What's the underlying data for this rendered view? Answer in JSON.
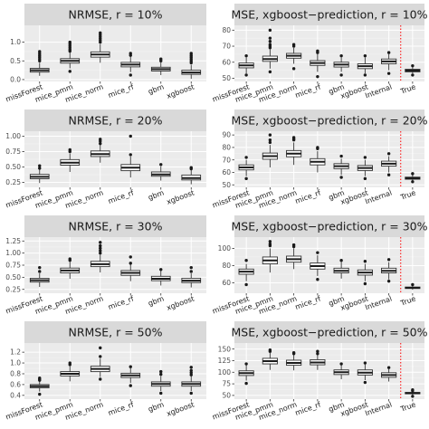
{
  "chart_data": [
    {
      "type": "box",
      "title": "NRMSE, r = 10%",
      "categories": [
        "missForest",
        "mice_pmm",
        "mice_norm",
        "mice_rf",
        "gbm",
        "xgboost"
      ],
      "ylim": [
        -0.05,
        1.45
      ],
      "yticks": [
        0.0,
        0.5,
        1.0
      ],
      "ytick_labels": [
        "0.0",
        "0.5",
        "1.0"
      ],
      "boxes": [
        {
          "q1": 0.2,
          "median": 0.25,
          "q3": 0.3,
          "whisker_low": 0.1,
          "whisker_high": 0.45,
          "outliers": [
            0.5,
            0.55,
            0.6,
            0.65,
            0.7,
            0.75
          ]
        },
        {
          "q1": 0.44,
          "median": 0.5,
          "q3": 0.56,
          "whisker_low": 0.3,
          "whisker_high": 0.73,
          "outliers": [
            0.22,
            0.76,
            0.8,
            0.85,
            0.9,
            0.95,
            1.0
          ]
        },
        {
          "q1": 0.6,
          "median": 0.67,
          "q3": 0.74,
          "whisker_low": 0.45,
          "whisker_high": 0.95,
          "outliers": [
            1.0,
            1.05,
            1.1,
            1.15,
            1.2,
            1.25
          ]
        },
        {
          "q1": 0.34,
          "median": 0.4,
          "q3": 0.46,
          "whisker_low": 0.2,
          "whisker_high": 0.62,
          "outliers": [
            0.12,
            0.65,
            0.7
          ]
        },
        {
          "q1": 0.23,
          "median": 0.28,
          "q3": 0.33,
          "whisker_low": 0.12,
          "whisker_high": 0.47,
          "outliers": [
            0.5,
            0.55
          ]
        },
        {
          "q1": 0.14,
          "median": 0.19,
          "q3": 0.25,
          "whisker_low": 0.02,
          "whisker_high": 0.4,
          "outliers": [
            0.45,
            0.5,
            0.55,
            0.6,
            0.65,
            0.7
          ]
        }
      ]
    },
    {
      "type": "box",
      "title": "MSE, xgboost−prediction, r = 10%",
      "categories": [
        "missForest",
        "mice_pmm",
        "mice_norm",
        "mice_rf",
        "gbm",
        "xgboost",
        "Internal",
        "True"
      ],
      "ylim": [
        48,
        83
      ],
      "yticks": [
        50,
        60,
        70,
        80
      ],
      "ytick_labels": [
        "50",
        "60",
        "70",
        "80"
      ],
      "true_divider": true,
      "boxes": [
        {
          "q1": 56.5,
          "median": 58.0,
          "q3": 59.5,
          "whisker_low": 53.0,
          "whisker_high": 63.0,
          "outliers": [
            52.0,
            64.0
          ]
        },
        {
          "q1": 60.5,
          "median": 62.0,
          "q3": 63.8,
          "whisker_low": 56.0,
          "whisker_high": 68.0,
          "outliers": [
            54.0,
            69.0,
            70.0,
            71.0,
            73.0,
            75.0,
            80.0
          ]
        },
        {
          "q1": 62.5,
          "median": 64.0,
          "q3": 65.5,
          "whisker_low": 59.0,
          "whisker_high": 69.0,
          "outliers": [
            56.0,
            70.0,
            71.0
          ]
        },
        {
          "q1": 58.0,
          "median": 59.5,
          "q3": 61.0,
          "whisker_low": 54.0,
          "whisker_high": 65.0,
          "outliers": [
            51.0,
            66.0,
            67.0
          ]
        },
        {
          "q1": 57.0,
          "median": 58.5,
          "q3": 60.0,
          "whisker_low": 54.0,
          "whisker_high": 63.0,
          "outliers": [
            52.0,
            64.0
          ]
        },
        {
          "q1": 56.0,
          "median": 57.5,
          "q3": 59.0,
          "whisker_low": 53.0,
          "whisker_high": 63.0,
          "outliers": [
            52.0,
            64.0
          ]
        },
        {
          "q1": 59.0,
          "median": 60.5,
          "q3": 62.0,
          "whisker_low": 55.0,
          "whisker_high": 65.0,
          "outliers": [
            53.0,
            66.0
          ]
        },
        {
          "q1": 54.0,
          "median": 54.8,
          "q3": 55.6,
          "whisker_low": 53.0,
          "whisker_high": 57.0,
          "outliers": [
            52.0,
            57.8
          ]
        }
      ]
    },
    {
      "type": "box",
      "title": "NRMSE, r = 20%",
      "categories": [
        "missForest",
        "mice_pmm",
        "mice_norm",
        "mice_rf",
        "gbm",
        "xgboost"
      ],
      "ylim": [
        0.17,
        1.08
      ],
      "yticks": [
        0.25,
        0.5,
        0.75,
        1.0
      ],
      "ytick_labels": [
        "0.25",
        "0.50",
        "0.75",
        "1.00"
      ],
      "boxes": [
        {
          "q1": 0.31,
          "median": 0.34,
          "q3": 0.38,
          "whisker_low": 0.24,
          "whisker_high": 0.46,
          "outliers": [
            0.48,
            0.52
          ]
        },
        {
          "q1": 0.53,
          "median": 0.57,
          "q3": 0.62,
          "whisker_low": 0.42,
          "whisker_high": 0.72,
          "outliers": [
            0.75,
            0.78
          ]
        },
        {
          "q1": 0.67,
          "median": 0.71,
          "q3": 0.76,
          "whisker_low": 0.57,
          "whisker_high": 0.86,
          "outliers": [
            0.88,
            0.92,
            0.95
          ]
        },
        {
          "q1": 0.44,
          "median": 0.49,
          "q3": 0.54,
          "whisker_low": 0.33,
          "whisker_high": 0.67,
          "outliers": [
            0.7,
            1.0
          ]
        },
        {
          "q1": 0.35,
          "median": 0.38,
          "q3": 0.42,
          "whisker_low": 0.28,
          "whisker_high": 0.51,
          "outliers": [
            0.54
          ]
        },
        {
          "q1": 0.29,
          "median": 0.32,
          "q3": 0.37,
          "whisker_low": 0.22,
          "whisker_high": 0.45,
          "outliers": [
            0.47,
            0.49
          ]
        }
      ]
    },
    {
      "type": "box",
      "title": "MSE, xgboost−prediction, r = 20%",
      "categories": [
        "missForest",
        "mice_pmm",
        "mice_norm",
        "mice_rf",
        "gbm",
        "xgboost",
        "Internal",
        "True"
      ],
      "ylim": [
        48,
        93
      ],
      "yticks": [
        50,
        60,
        70,
        80,
        90
      ],
      "ytick_labels": [
        "50",
        "60",
        "70",
        "80",
        "90"
      ],
      "true_divider": true,
      "boxes": [
        {
          "q1": 62.0,
          "median": 64.0,
          "q3": 66.0,
          "whisker_low": 57.0,
          "whisker_high": 70.0,
          "outliers": [
            55.0,
            72.0
          ]
        },
        {
          "q1": 70.5,
          "median": 73.0,
          "q3": 75.5,
          "whisker_low": 64.0,
          "whisker_high": 82.0,
          "outliers": [
            84.0,
            86.0,
            90.0
          ]
        },
        {
          "q1": 72.5,
          "median": 75.0,
          "q3": 77.5,
          "whisker_low": 66.0,
          "whisker_high": 84.0,
          "outliers": [
            86.0,
            87.0,
            88.0
          ]
        },
        {
          "q1": 66.0,
          "median": 68.5,
          "q3": 71.0,
          "whisker_low": 60.0,
          "whisker_high": 77.0,
          "outliers": [
            79.0,
            80.0
          ]
        },
        {
          "q1": 63.0,
          "median": 65.0,
          "q3": 67.0,
          "whisker_low": 58.0,
          "whisker_high": 71.0,
          "outliers": [
            56.0,
            73.0
          ]
        },
        {
          "q1": 61.5,
          "median": 63.5,
          "q3": 65.5,
          "whisker_low": 57.0,
          "whisker_high": 70.0,
          "outliers": [
            55.0,
            72.0
          ]
        },
        {
          "q1": 65.0,
          "median": 67.0,
          "q3": 69.0,
          "whisker_low": 60.0,
          "whisker_high": 73.0,
          "outliers": [
            58.0,
            75.0
          ]
        },
        {
          "q1": 54.5,
          "median": 55.3,
          "q3": 56.2,
          "whisker_low": 53.0,
          "whisker_high": 58.0,
          "outliers": [
            52.5,
            59.0
          ]
        }
      ]
    },
    {
      "type": "box",
      "title": "NRMSE, r = 30%",
      "categories": [
        "missForest",
        "mice_pmm",
        "mice_norm",
        "mice_rf",
        "gbm",
        "xgboost"
      ],
      "ylim": [
        0.17,
        1.33
      ],
      "yticks": [
        0.25,
        0.5,
        0.75,
        1.0,
        1.25
      ],
      "ytick_labels": [
        "0.25",
        "0.50",
        "0.75",
        "1.00",
        "1.25"
      ],
      "boxes": [
        {
          "q1": 0.4,
          "median": 0.44,
          "q3": 0.48,
          "whisker_low": 0.3,
          "whisker_high": 0.58,
          "outliers": [
            0.62,
            0.7
          ]
        },
        {
          "q1": 0.59,
          "median": 0.64,
          "q3": 0.69,
          "whisker_low": 0.47,
          "whisker_high": 0.82,
          "outliers": [
            0.85,
            0.88
          ]
        },
        {
          "q1": 0.72,
          "median": 0.77,
          "q3": 0.83,
          "whisker_low": 0.6,
          "whisker_high": 0.97,
          "outliers": [
            1.0,
            1.05,
            1.1,
            1.15,
            1.22
          ]
        },
        {
          "q1": 0.54,
          "median": 0.59,
          "q3": 0.64,
          "whisker_low": 0.42,
          "whisker_high": 0.76,
          "outliers": [
            0.79,
            0.92
          ]
        },
        {
          "q1": 0.43,
          "median": 0.47,
          "q3": 0.52,
          "whisker_low": 0.33,
          "whisker_high": 0.63,
          "outliers": [
            0.66
          ]
        },
        {
          "q1": 0.39,
          "median": 0.43,
          "q3": 0.48,
          "whisker_low": 0.29,
          "whisker_high": 0.58,
          "outliers": [
            0.62,
            0.7
          ]
        }
      ]
    },
    {
      "type": "box",
      "title": "MSE, xgboost−prediction, r = 30%",
      "categories": [
        "missForest",
        "mice_pmm",
        "mice_norm",
        "mice_rf",
        "gbm",
        "xgboost",
        "Internal",
        "True"
      ],
      "ylim": [
        48,
        113
      ],
      "yticks": [
        60,
        80,
        100
      ],
      "ytick_labels": [
        "60",
        "80",
        "100"
      ],
      "true_divider": true,
      "boxes": [
        {
          "q1": 70.0,
          "median": 73.0,
          "q3": 76.0,
          "whisker_low": 62.0,
          "whisker_high": 82.0,
          "outliers": [
            58.0,
            86.0
          ]
        },
        {
          "q1": 82.0,
          "median": 86.0,
          "q3": 90.0,
          "whisker_low": 72.0,
          "whisker_high": 100.0,
          "outliers": [
            103.0,
            105.0,
            108.0
          ]
        },
        {
          "q1": 84.0,
          "median": 87.5,
          "q3": 91.0,
          "whisker_low": 76.0,
          "whisker_high": 100.0,
          "outliers": [
            102.0,
            104.0
          ]
        },
        {
          "q1": 76.0,
          "median": 79.5,
          "q3": 83.0,
          "whisker_low": 68.0,
          "whisker_high": 92.0,
          "outliers": [
            64.0,
            95.0
          ]
        },
        {
          "q1": 71.5,
          "median": 74.0,
          "q3": 77.0,
          "whisker_low": 65.0,
          "whisker_high": 84.0,
          "outliers": [
            86.0
          ]
        },
        {
          "q1": 69.0,
          "median": 72.0,
          "q3": 75.0,
          "whisker_low": 62.0,
          "whisker_high": 82.0,
          "outliers": [
            59.0,
            85.0
          ]
        },
        {
          "q1": 71.5,
          "median": 74.0,
          "q3": 77.0,
          "whisker_low": 64.0,
          "whisker_high": 84.0,
          "outliers": [
            62.0,
            87.0
          ]
        },
        {
          "q1": 53.5,
          "median": 54.3,
          "q3": 55.2,
          "whisker_low": 52.0,
          "whisker_high": 57.0,
          "outliers": [
            58.0
          ]
        }
      ]
    },
    {
      "type": "box",
      "title": "NRMSE, r = 50%",
      "categories": [
        "missForest",
        "mice_pmm",
        "mice_norm",
        "mice_rf",
        "gbm",
        "xgboost"
      ],
      "ylim": [
        0.33,
        1.37
      ],
      "yticks": [
        0.4,
        0.6,
        0.8,
        1.0,
        1.2
      ],
      "ytick_labels": [
        "0.4",
        "0.6",
        "0.8",
        "1.0",
        "1.2"
      ],
      "boxes": [
        {
          "q1": 0.54,
          "median": 0.57,
          "q3": 0.6,
          "whisker_low": 0.47,
          "whisker_high": 0.66,
          "outliers": [
            0.42,
            0.68,
            0.7,
            0.72
          ]
        },
        {
          "q1": 0.76,
          "median": 0.8,
          "q3": 0.84,
          "whisker_low": 0.66,
          "whisker_high": 0.94,
          "outliers": [
            0.97,
            1.0
          ]
        },
        {
          "q1": 0.84,
          "median": 0.89,
          "q3": 0.94,
          "whisker_low": 0.74,
          "whisker_high": 1.08,
          "outliers": [
            0.7,
            1.12,
            1.28
          ]
        },
        {
          "q1": 0.73,
          "median": 0.77,
          "q3": 0.81,
          "whisker_low": 0.63,
          "whisker_high": 0.9,
          "outliers": [
            0.58,
            0.93
          ]
        },
        {
          "q1": 0.57,
          "median": 0.61,
          "q3": 0.65,
          "whisker_low": 0.48,
          "whisker_high": 0.76,
          "outliers": [
            0.44,
            0.79,
            0.84
          ]
        },
        {
          "q1": 0.57,
          "median": 0.61,
          "q3": 0.65,
          "whisker_low": 0.48,
          "whisker_high": 0.76,
          "outliers": [
            0.44,
            0.78,
            0.82,
            0.86,
            0.92
          ]
        }
      ]
    },
    {
      "type": "box",
      "title": "MSE, xgboost−prediction, r = 50%",
      "categories": [
        "missForest",
        "mice_pmm",
        "mice_norm",
        "mice_rf",
        "gbm",
        "xgboost",
        "Internal",
        "True"
      ],
      "ylim": [
        42,
        163
      ],
      "yticks": [
        50,
        75,
        100,
        125,
        150
      ],
      "ytick_labels": [
        "50",
        "75",
        "100",
        "125",
        "150"
      ],
      "true_divider": true,
      "boxes": [
        {
          "q1": 93.0,
          "median": 98.0,
          "q3": 103.0,
          "whisker_low": 82.0,
          "whisker_high": 115.0,
          "outliers": [
            76.0,
            118.0
          ]
        },
        {
          "q1": 118.0,
          "median": 124.0,
          "q3": 130.0,
          "whisker_low": 105.0,
          "whisker_high": 142.0,
          "outliers": [
            145.0,
            148.0
          ]
        },
        {
          "q1": 115.0,
          "median": 120.0,
          "q3": 126.0,
          "whisker_low": 104.0,
          "whisker_high": 137.0,
          "outliers": [
            140.0,
            142.0
          ]
        },
        {
          "q1": 116.0,
          "median": 121.0,
          "q3": 127.0,
          "whisker_low": 105.0,
          "whisker_high": 137.0,
          "outliers": [
            140.0,
            145.0
          ]
        },
        {
          "q1": 95.0,
          "median": 100.0,
          "q3": 105.0,
          "whisker_low": 85.0,
          "whisker_high": 115.0,
          "outliers": [
            118.0
          ]
        },
        {
          "q1": 94.0,
          "median": 99.0,
          "q3": 105.0,
          "whisker_low": 83.0,
          "whisker_high": 117.0,
          "outliers": [
            78.0,
            120.0
          ]
        },
        {
          "q1": 89.0,
          "median": 94.0,
          "q3": 99.0,
          "whisker_low": 80.0,
          "whisker_high": 107.0,
          "outliers": [
            110.0
          ]
        },
        {
          "q1": 53.5,
          "median": 55.0,
          "q3": 56.5,
          "whisker_low": 50.0,
          "whisker_high": 58.0,
          "outliers": [
            48.0,
            60.0,
            62.0
          ]
        }
      ]
    }
  ],
  "style": {
    "panel_bg": "#ebebeb",
    "strip_bg": "#d9d9d9",
    "grid_major": "#ffffff",
    "grid_minor": "#f5f5f5",
    "box_fill": "#ffffff",
    "box_stroke": "#333333",
    "true_divider_color": "#ff0000"
  }
}
